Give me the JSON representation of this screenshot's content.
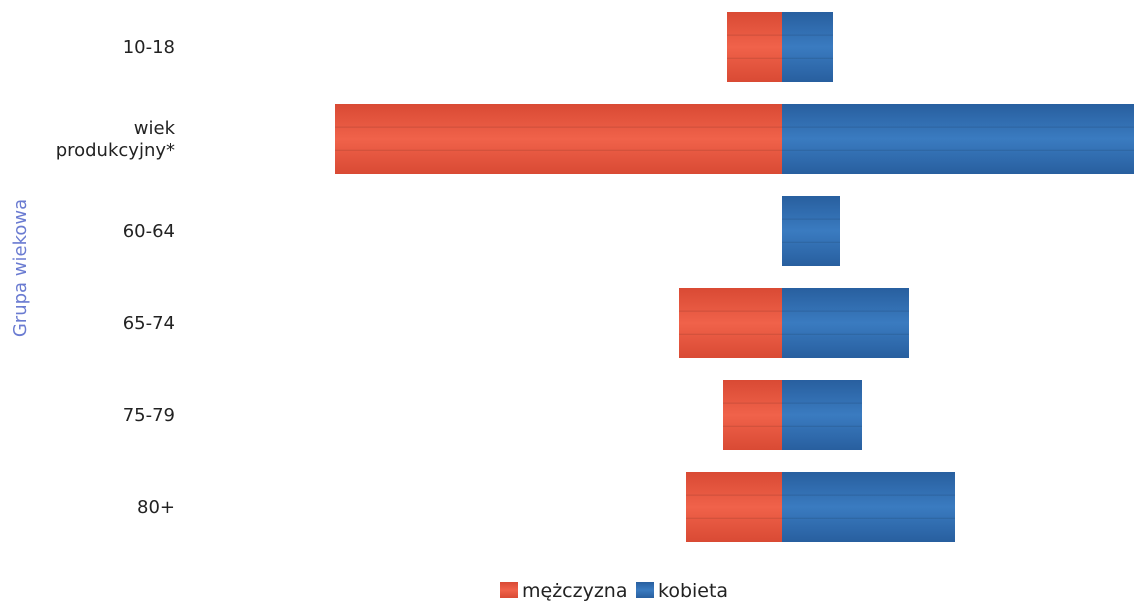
{
  "chart_data": {
    "type": "bar",
    "orientation": "horizontal",
    "layout": "diverging",
    "title": "",
    "ylabel": "Grupa wiekowa",
    "xlabel": "",
    "categories": [
      "10-18",
      "wiek\nprodukcyjny*",
      "60-64",
      "65-74",
      "75-79",
      "80+"
    ],
    "series": [
      {
        "name": "mężczyzna",
        "color": "#e8503a",
        "side": "left",
        "values": [
          55,
          447,
          0,
          103,
          59,
          96
        ]
      },
      {
        "name": "kobieta",
        "color": "#2f6aad",
        "side": "right",
        "values": [
          51,
          355,
          58,
          127,
          80,
          173
        ]
      }
    ],
    "grid": false,
    "legend_position": "bottom-center"
  }
}
